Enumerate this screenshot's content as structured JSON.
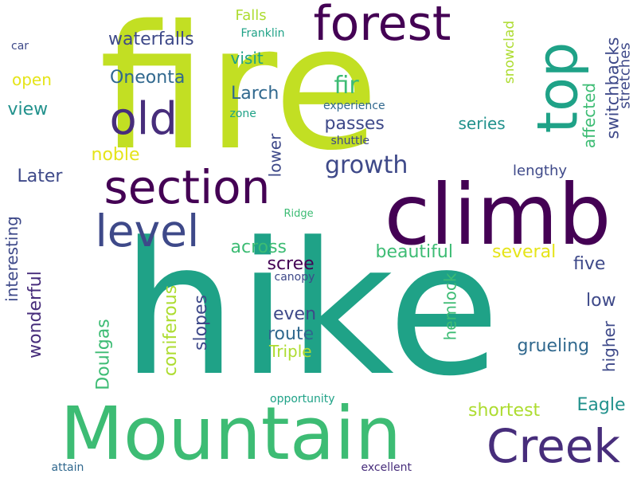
{
  "palette": {
    "yellow_green": "#c2df23",
    "lime": "#addc30",
    "green": "#3dbc74",
    "teal": "#1fa287",
    "teal_dark": "#21918c",
    "blue": "#30688e",
    "indigo": "#3e4989",
    "purple": "#472d7b",
    "violet": "#440154",
    "yellow": "#e5e419"
  },
  "words": [
    {
      "text": "fire"
    },
    {
      "text": "hike"
    },
    {
      "text": "Mountain"
    },
    {
      "text": "climb"
    },
    {
      "text": "top"
    },
    {
      "text": "forest"
    },
    {
      "text": "section"
    },
    {
      "text": "old"
    },
    {
      "text": "level"
    },
    {
      "text": "Creek"
    },
    {
      "text": "waterfalls"
    },
    {
      "text": "Falls"
    },
    {
      "text": "Franklin"
    },
    {
      "text": "car"
    },
    {
      "text": "visit"
    },
    {
      "text": "snowclad"
    },
    {
      "text": "switchbacks"
    },
    {
      "text": "stretches"
    },
    {
      "text": "Oneonta"
    },
    {
      "text": "open"
    },
    {
      "text": "fir"
    },
    {
      "text": "experience"
    },
    {
      "text": "view"
    },
    {
      "text": "Larch"
    },
    {
      "text": "zone"
    },
    {
      "text": "affected"
    },
    {
      "text": "passes"
    },
    {
      "text": "series"
    },
    {
      "text": "shuttle"
    },
    {
      "text": "noble"
    },
    {
      "text": "growth"
    },
    {
      "text": "lower"
    },
    {
      "text": "lengthy"
    },
    {
      "text": "Later"
    },
    {
      "text": "interesting"
    },
    {
      "text": "Ridge"
    },
    {
      "text": "wonderful"
    },
    {
      "text": "across"
    },
    {
      "text": "beautiful"
    },
    {
      "text": "several"
    },
    {
      "text": "scree"
    },
    {
      "text": "canopy"
    },
    {
      "text": "five"
    },
    {
      "text": "hemlock"
    },
    {
      "text": "coniferous"
    },
    {
      "text": "slopes"
    },
    {
      "text": "even"
    },
    {
      "text": "low"
    },
    {
      "text": "Doulgas"
    },
    {
      "text": "route"
    },
    {
      "text": "grueling"
    },
    {
      "text": "higher"
    },
    {
      "text": "Triple"
    },
    {
      "text": "opportunity"
    },
    {
      "text": "Eagle"
    },
    {
      "text": "shortest"
    },
    {
      "text": "attain"
    },
    {
      "text": "excellent"
    }
  ]
}
